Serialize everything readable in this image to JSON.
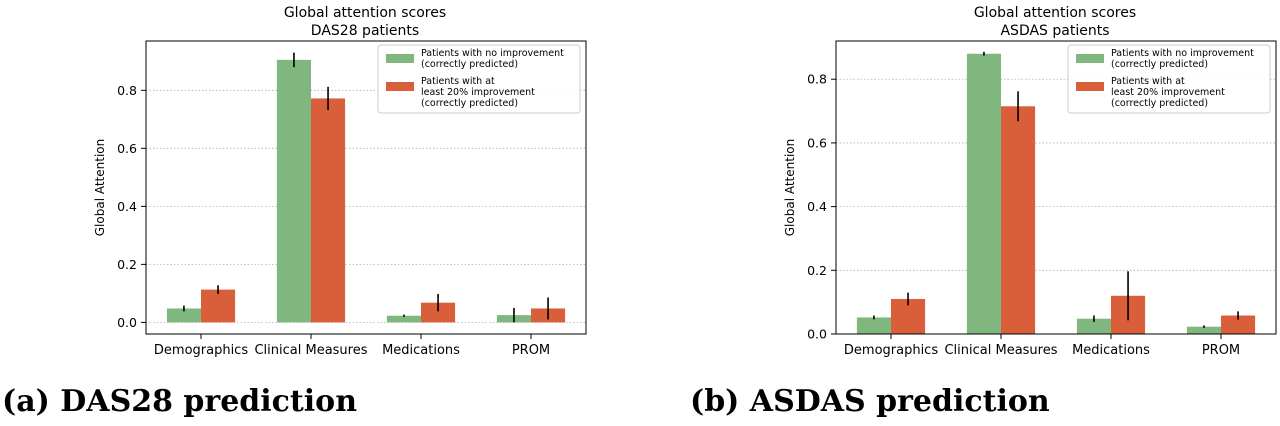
{
  "colors": {
    "no_improvement": "#7fb77e",
    "improvement": "#d95f3b",
    "grid": "#b0b0b0"
  },
  "chart_data": [
    {
      "type": "bar",
      "title": "Global attention scores",
      "subtitle": "DAS28 patients",
      "ylabel": "Global Attention",
      "xlabel": "",
      "categories": [
        "Demographics",
        "Clinical Measures",
        "Medications",
        "PROM"
      ],
      "ylim": [
        -0.04,
        0.97
      ],
      "yticks": [
        0.0,
        0.2,
        0.4,
        0.6,
        0.8
      ],
      "ytick_labels": [
        "0.0",
        "0.2",
        "0.4",
        "0.6",
        "0.8"
      ],
      "grid": "horizontal dotted",
      "legend_position": "top-right",
      "series": [
        {
          "name": "Patients with no improvement\n(correctly predicted)",
          "values": [
            0.048,
            0.905,
            0.023,
            0.025
          ],
          "errors": [
            0.01,
            0.025,
            0.004,
            0.025
          ]
        },
        {
          "name": "Patients with at\nleast 20% improvement\n(correctly predicted)",
          "values": [
            0.113,
            0.772,
            0.068,
            0.048
          ],
          "errors": [
            0.015,
            0.04,
            0.03,
            0.038
          ]
        }
      ]
    },
    {
      "type": "bar",
      "title": "Global attention scores",
      "subtitle": "ASDAS patients",
      "ylabel": "Global Attention",
      "xlabel": "",
      "categories": [
        "Demographics",
        "Clinical Measures",
        "Medications",
        "PROM"
      ],
      "ylim": [
        0.0,
        0.92
      ],
      "yticks": [
        0.0,
        0.2,
        0.4,
        0.6,
        0.8
      ],
      "ytick_labels": [
        "0.0",
        "0.2",
        "0.4",
        "0.6",
        "0.8"
      ],
      "grid": "horizontal dotted",
      "legend_position": "top-right",
      "series": [
        {
          "name": "Patients with no improvement\n(correctly predicted)",
          "values": [
            0.052,
            0.88,
            0.048,
            0.023
          ],
          "errors": [
            0.006,
            0.006,
            0.01,
            0.004
          ]
        },
        {
          "name": "Patients with at\nleast 20% improvement\n(correctly predicted)",
          "values": [
            0.11,
            0.715,
            0.12,
            0.058
          ],
          "errors": [
            0.02,
            0.047,
            0.077,
            0.013
          ]
        }
      ]
    }
  ],
  "captions": {
    "a": "(a) DAS28 prediction",
    "b": "(b) ASDAS prediction"
  }
}
